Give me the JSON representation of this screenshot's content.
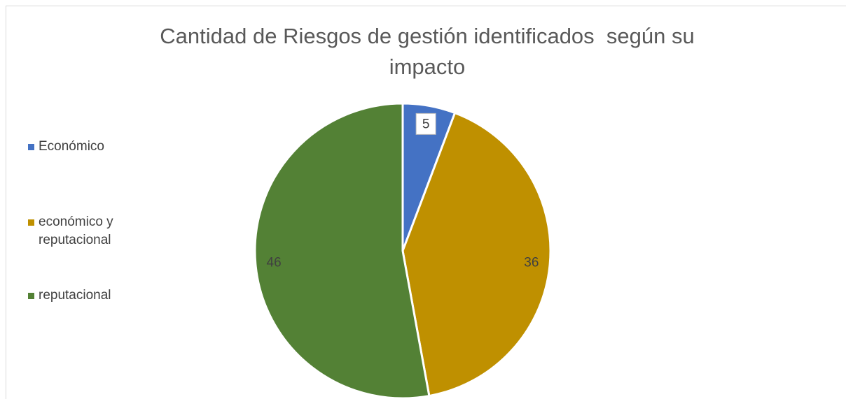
{
  "chart_data": {
    "type": "pie",
    "title": "Cantidad de Riesgos de gestión identificados  según su impacto",
    "categories": [
      "Económico",
      "económico y reputacional",
      "reputacional"
    ],
    "values": [
      5,
      36,
      46
    ],
    "colors": [
      "#4472c4",
      "#bf9000",
      "#538135"
    ],
    "legend": "left"
  }
}
